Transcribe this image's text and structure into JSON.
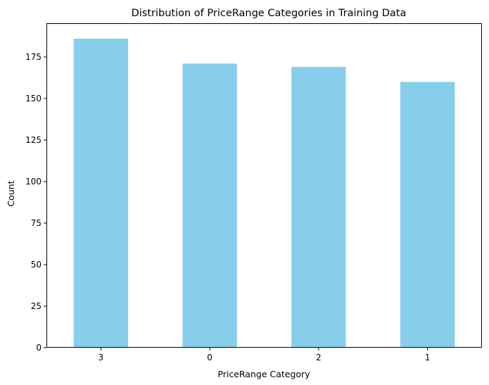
{
  "chart_data": {
    "type": "bar",
    "title": "Distribution of PriceRange Categories in Training Data",
    "xlabel": "PriceRange Category",
    "ylabel": "Count",
    "categories": [
      "3",
      "0",
      "2",
      "1"
    ],
    "values": [
      186,
      171,
      169,
      160
    ],
    "ylim": [
      0,
      195.3
    ],
    "yticks": [
      0,
      25,
      50,
      75,
      100,
      125,
      150,
      175
    ],
    "bar_color": "#87ceeb",
    "grid": false,
    "legend": "none"
  }
}
